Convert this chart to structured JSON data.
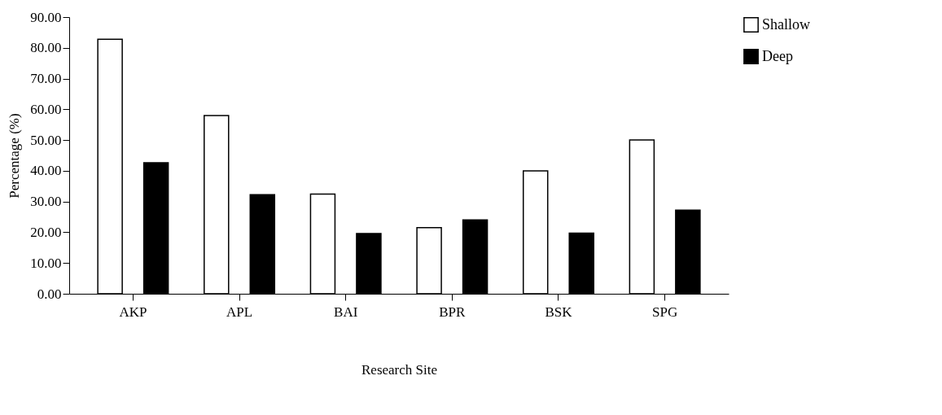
{
  "chart_data": {
    "type": "bar",
    "xlabel": "Research Site",
    "ylabel": "Percentage  (%)",
    "categories": [
      "AKP",
      "APL",
      "BAI",
      "BPR",
      "BSK",
      "SPG"
    ],
    "series": [
      {
        "name": "Shallow",
        "color": "#ffffff",
        "values": [
          82.8,
          58.0,
          32.4,
          21.5,
          40.0,
          50.0
        ]
      },
      {
        "name": "Deep",
        "color": "#000000",
        "values": [
          42.6,
          32.2,
          19.6,
          24.0,
          19.7,
          27.2
        ]
      }
    ],
    "ylim": [
      0,
      90
    ],
    "yticks": [
      {
        "value": 0,
        "label": "0.00"
      },
      {
        "value": 10,
        "label": "10.00"
      },
      {
        "value": 20,
        "label": "20.00"
      },
      {
        "value": 30,
        "label": "30.00"
      },
      {
        "value": 40,
        "label": "40.00"
      },
      {
        "value": 50,
        "label": "50.00"
      },
      {
        "value": 60,
        "label": "60.00"
      },
      {
        "value": 70,
        "label": "70.00"
      },
      {
        "value": 80,
        "label": "80.00"
      },
      {
        "value": 90,
        "label": "90.00"
      }
    ],
    "grid": false,
    "legend": "right"
  }
}
